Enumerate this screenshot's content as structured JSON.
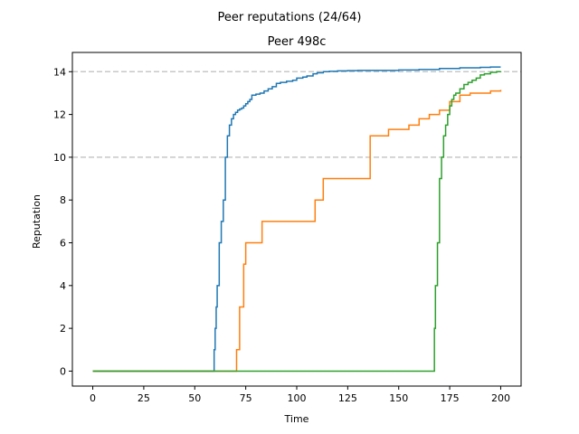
{
  "chart_data": {
    "type": "line",
    "suptitle": "Peer reputations (24/64)",
    "title": "Peer 498c",
    "xlabel": "Time",
    "ylabel": "Reputation",
    "xlim": [
      -10,
      210
    ],
    "ylim": [
      -0.7,
      14.9
    ],
    "xticks": [
      0,
      25,
      50,
      75,
      100,
      125,
      150,
      175,
      200
    ],
    "yticks": [
      0,
      2,
      4,
      6,
      8,
      10,
      12,
      14
    ],
    "reference_lines": [
      10,
      14
    ],
    "grid": false,
    "legend": "none",
    "series": [
      {
        "color": "#1f77b4",
        "x": [
          0,
          59,
          59.5,
          60,
          60.5,
          61,
          62,
          63,
          64,
          65,
          66,
          67,
          68,
          69,
          70,
          71,
          72,
          73,
          74,
          75,
          76,
          77,
          78,
          80,
          82,
          84,
          86,
          88,
          90,
          92,
          95,
          98,
          100,
          103,
          105,
          108,
          110,
          113,
          116,
          120,
          125,
          130,
          140,
          150,
          160,
          170,
          180,
          190,
          195,
          200
        ],
        "y": [
          0,
          0,
          1,
          2,
          3,
          4,
          6,
          7,
          8,
          10,
          11,
          11.5,
          11.8,
          12,
          12.1,
          12.2,
          12.25,
          12.3,
          12.4,
          12.5,
          12.6,
          12.7,
          12.9,
          12.95,
          13,
          13.1,
          13.2,
          13.3,
          13.45,
          13.5,
          13.55,
          13.6,
          13.7,
          13.75,
          13.8,
          13.9,
          13.95,
          14,
          14.02,
          14.04,
          14.05,
          14.06,
          14.06,
          14.08,
          14.1,
          14.15,
          14.18,
          14.2,
          14.22,
          14.22
        ]
      },
      {
        "color": "#ff7f0e",
        "x": [
          0,
          70,
          70.5,
          72,
          74,
          75,
          83,
          109,
          113,
          136,
          145,
          155,
          160,
          165,
          170,
          175,
          180,
          185,
          190,
          195,
          200
        ],
        "y": [
          0,
          0,
          1,
          3,
          5,
          6,
          7,
          8,
          9,
          11,
          11.3,
          11.5,
          11.8,
          12,
          12.2,
          12.6,
          12.9,
          13,
          13,
          13.1,
          13.15
        ]
      },
      {
        "color": "#2ca02c",
        "x": [
          0,
          167,
          167.5,
          168,
          169,
          170,
          171,
          172,
          173,
          174,
          175,
          176,
          177,
          178,
          180,
          182,
          184,
          186,
          188,
          190,
          192,
          195,
          198,
          200
        ],
        "y": [
          0,
          0,
          2,
          4,
          6,
          9,
          10,
          11,
          11.5,
          12,
          12.4,
          12.7,
          12.9,
          13,
          13.2,
          13.4,
          13.5,
          13.6,
          13.7,
          13.85,
          13.9,
          13.97,
          14,
          14.02
        ]
      }
    ]
  }
}
